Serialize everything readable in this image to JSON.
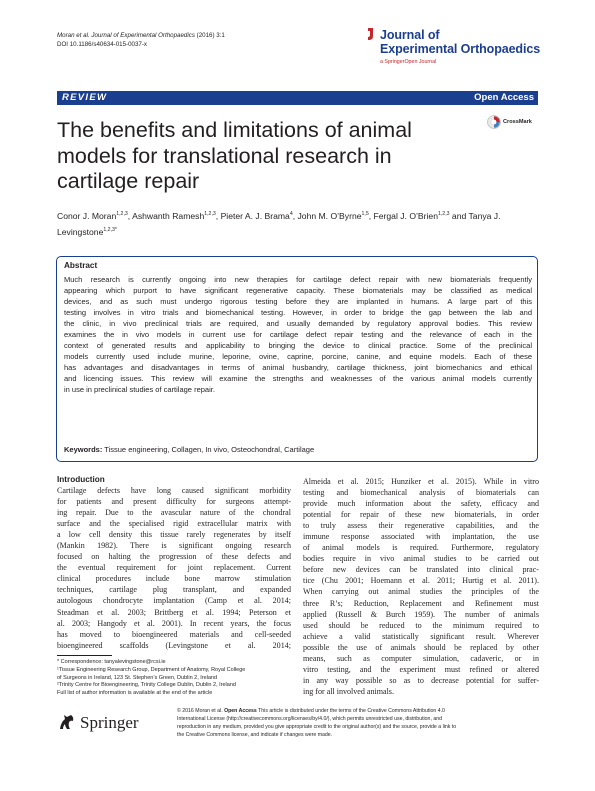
{
  "header": {
    "citation_line1_journal": "Moran et al. Journal of Experimental Orthopaedics",
    "citation_line1_rest": " (2016) 3:1",
    "citation_line2": "DOI 10.1186/s40634-015-0037-x",
    "journal_logo_line1": "Journal of",
    "journal_logo_line2": "Experimental Orthopaedics",
    "journal_logo_sub": "a SpringerOpen Journal",
    "brand_color": "#1b3f8f",
    "accent_color": "#c1272d"
  },
  "banner": {
    "left": "REVIEW",
    "right": "Open Access"
  },
  "article": {
    "title": "The benefits and limitations of animal models for translational research in cartilage repair",
    "crossmark_label": "CrossMark",
    "authors": [
      {
        "name": "Conor J. Moran",
        "sup": "1,2,3",
        "sep": ", "
      },
      {
        "name": "Ashwanth Ramesh",
        "sup": "1,2,3",
        "sep": ", "
      },
      {
        "name": "Pieter A. J. Brama",
        "sup": "4",
        "sep": ", "
      },
      {
        "name": "John M. O’Byrne",
        "sup": "1,5",
        "sep": ", "
      },
      {
        "name": "Fergal J. O’Brien",
        "sup": "1,2,3",
        "sep": " "
      },
      {
        "name": "and Tanya J. Levingstone",
        "sup": "1,2,3*",
        "sep": ""
      }
    ]
  },
  "abstract": {
    "heading": "Abstract",
    "lines": [
      "Much research is currently ongoing into new therapies for cartilage defect repair with new biomaterials frequently",
      "appearing which purport to have significant regenerative capacity. These biomaterials may be classified as medical",
      "devices, and as such must undergo rigorous testing before they are implanted in humans. A large part of this",
      "testing involves in vitro trials and biomechanical testing. However, in order to bridge the gap between the lab and",
      "the clinic, in vivo preclinical trials are required, and usually demanded by regulatory approval bodies. This review",
      "examines the in vivo models in current use for cartilage defect repair testing and the relevance of each in the",
      "context of generated results and applicability to bringing the device to clinical practice. Some of the preclinical",
      "models currently used include murine, leporine, ovine, caprine, porcine, canine, and equine models. Each of these",
      "has advantages and disadvantages in terms of animal husbandry, cartilage thickness, joint biomechanics and ethical",
      "and licencing issues. This review will examine the strengths and weaknesses of the various animal models currently",
      "in use in preclinical studies of cartilage repair."
    ],
    "keywords_label": "Keywords:",
    "keywords": "Tissue engineering, Collagen, In vivo, Osteochondral, Cartilage"
  },
  "body": {
    "intro_heading": "Introduction",
    "left_lines": [
      "Cartilage defects have long caused significant morbidity",
      "for patients and present difficulty for surgeons attempt-",
      "ing repair. Due to the avascular nature of the chondral",
      "surface and the specialised rigid extracellular matrix with",
      "a low cell density this tissue rarely regenerates by itself",
      "(Mankin 1982). There is significant ongoing research",
      "focused on halting the progression of these defects and",
      "the eventual requirement for joint replacement. Current",
      "clinical procedures include bone marrow stimulation",
      "techniques, cartilage plug transplant, and expanded",
      "autologous chondrocyte implantation (Camp et al. 2014;",
      "Steadman et al. 2003; Brittberg et al. 1994; Peterson et",
      "al. 2003; Hangody et al. 2001). In recent years, the focus",
      "has moved to bioengineered materials and cell-seeded",
      "bioengineered scaffolds (Levingstone et al. 2014;"
    ],
    "right_lines": [
      "Almeida et al. 2015; Hunziker et al. 2015). While in vitro",
      "testing and biomechanical analysis of biomaterials can",
      "provide much information about the safety, efficacy and",
      "potential for repair of these new biomaterials, in order",
      "to truly assess their regenerative capabilities, and the",
      "immune response associated with implantation, the use",
      "of animal models is required. Furthermore, regulatory",
      "bodies require in vivo animal studies to be carried out",
      "before new devices can be translated into clinical prac-",
      "tice (Chu 2001; Hoemann et al. 2011; Hurtig et al. 2011).",
      "When carrying out animal studies the principles of the",
      "three R’s; Reduction, Replacement and Refinement must",
      "applied (Russell & Burch 1959). The number of animals",
      "used should be reduced to the minimum required to",
      "achieve a valid statistically significant result. Wherever",
      "possible the use of animals should be replaced by other",
      "means, such as computer simulation, cadaveric, or in",
      "vitro testing, and the experiment must refined or altered",
      "in any way possible so as to decrease potential for suffer-",
      "ing for all involved animals."
    ]
  },
  "footnotes": [
    "* Correspondence: tanyalevingstone@rcsi.ie",
    "¹Tissue Engineering Research Group, Department of Anatomy, Royal College",
    "of Surgeons in Ireland, 123 St. Stephen’s Green, Dublin 2, Ireland",
    "²Trinity Centre for Bioengineering, Trinity College Dublin, Dublin 2, Ireland",
    "Full list of author information is available at the end of the article"
  ],
  "footer": {
    "springer_word": "Springer",
    "license_lead": "© 2016 Moran et al. ",
    "license_bold": "Open Access",
    "license_lines": [
      " This article is distributed under the terms of the Creative Commons Attribution 4.0",
      "International License (http://creativecommons.org/licenses/by/4.0/), which permits unrestricted use, distribution, and",
      "reproduction in any medium, provided you give appropriate credit to the original author(s) and the source, provide a link to",
      "the Creative Commons license, and indicate if changes were made."
    ]
  }
}
